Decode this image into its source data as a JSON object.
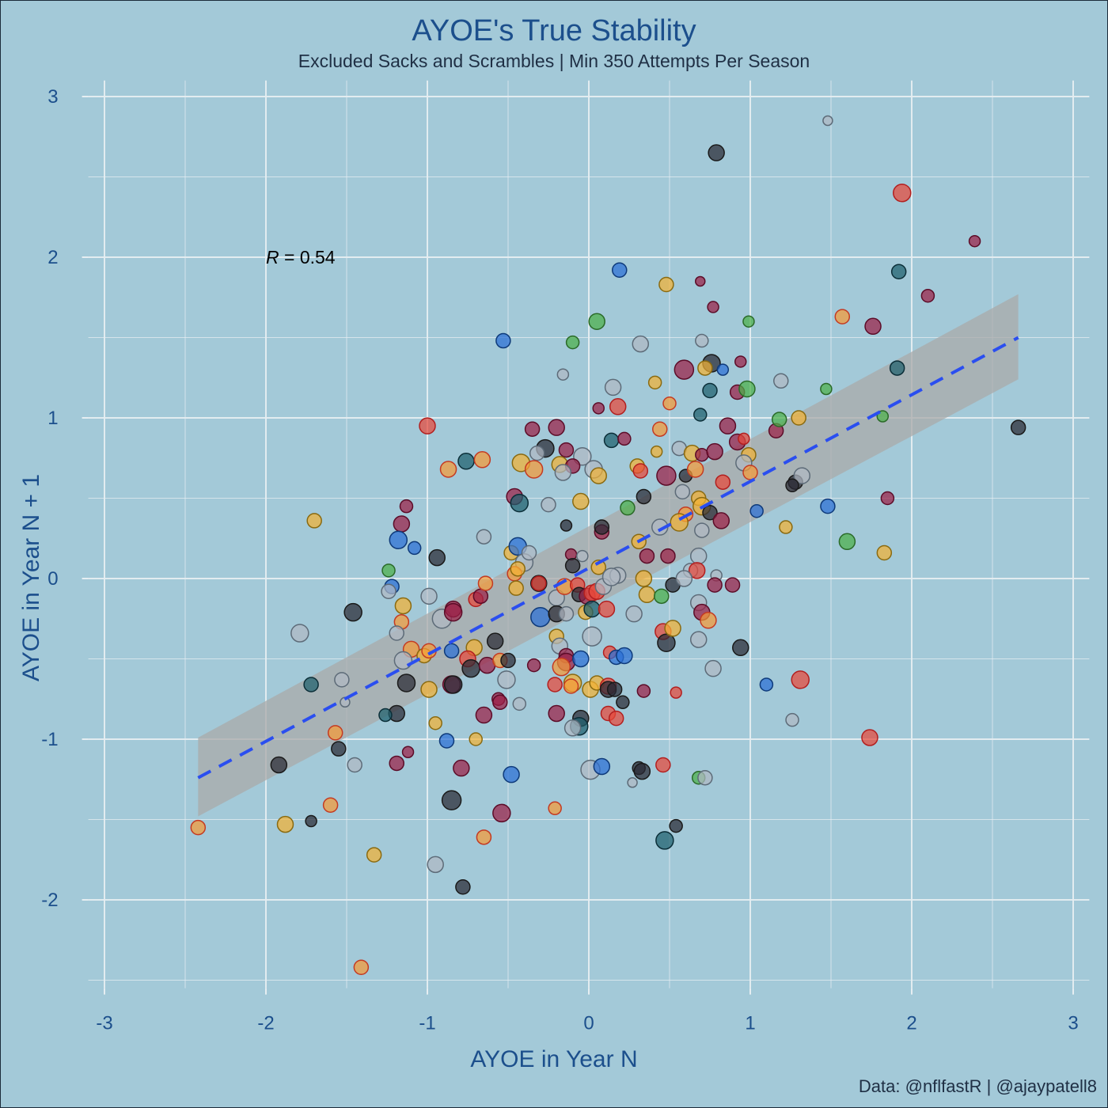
{
  "chart_data": {
    "type": "scatter",
    "title": "AYOE's True Stability",
    "subtitle": "Excluded Sacks and Scrambles | Min 350 Attempts Per Season",
    "xlabel": "AYOE in Year N",
    "ylabel": "AYOE in Year N + 1",
    "caption": "Data: @nflfastR | @ajaypatell8",
    "annotation": {
      "label_italic": "R",
      "label_rest": " = 0.54",
      "x": -2.0,
      "y": 2.0
    },
    "xlim": [
      -3.1,
      3.1
    ],
    "ylim": [
      -2.55,
      3.1
    ],
    "xticks": [
      -3,
      -2,
      -1,
      0,
      1,
      2,
      3
    ],
    "yticks": [
      -2,
      -1,
      0,
      1,
      2,
      3
    ],
    "grid": true,
    "regression": {
      "x": [
        -2.42,
        2.66
      ],
      "y": [
        -1.24,
        1.5
      ],
      "band_lower": [
        -1.48,
        1.24
      ],
      "band_upper": [
        -0.99,
        1.77
      ],
      "line_color": "#2a4ef0",
      "band_color": "#a9a9a9"
    },
    "colors": {
      "background": "#a3c9d8",
      "grid": "#e6eef2",
      "text_blue": "#1c4f8c",
      "palette": [
        "#2a2a35",
        "#b0b8c4",
        "#f2b134",
        "#9b2047",
        "#2b6fd6",
        "#e8483a",
        "#4cb04a",
        "#1f5f6e",
        "#f59a38",
        "#0d2347"
      ],
      "edges": [
        "#1a1a1a",
        "#5d6b78",
        "#8a6a10",
        "#5c0c28",
        "#0e3a7a",
        "#b21f1f",
        "#2a6a28",
        "#0b2e38",
        "#c43a22",
        "#2d62b8"
      ]
    },
    "points": [
      [
        1.48,
        2.85,
        6,
        1
      ],
      [
        0.79,
        2.65,
        10,
        0
      ],
      [
        1.94,
        2.4,
        11,
        5
      ],
      [
        2.39,
        2.1,
        7,
        3
      ],
      [
        0.19,
        1.92,
        9,
        4
      ],
      [
        1.92,
        1.91,
        9,
        7
      ],
      [
        0.48,
        1.83,
        9,
        2
      ],
      [
        0.69,
        1.85,
        6,
        3
      ],
      [
        2.1,
        1.76,
        8,
        3
      ],
      [
        0.77,
        1.69,
        7,
        3
      ],
      [
        1.57,
        1.63,
        9,
        8
      ],
      [
        1.76,
        1.57,
        10,
        3
      ],
      [
        0.05,
        1.6,
        10,
        6
      ],
      [
        0.99,
        1.6,
        7,
        6
      ],
      [
        -0.53,
        1.48,
        9,
        4
      ],
      [
        -0.1,
        1.47,
        8,
        6
      ],
      [
        0.32,
        1.46,
        10,
        1
      ],
      [
        0.7,
        1.48,
        8,
        1
      ],
      [
        0.59,
        1.3,
        12,
        3
      ],
      [
        0.76,
        1.34,
        11,
        0
      ],
      [
        0.83,
        1.3,
        7,
        4
      ],
      [
        0.72,
        1.31,
        9,
        2
      ],
      [
        0.94,
        1.35,
        7,
        3
      ],
      [
        1.91,
        1.31,
        9,
        7
      ],
      [
        -0.16,
        1.27,
        7,
        1
      ],
      [
        0.15,
        1.19,
        10,
        1
      ],
      [
        0.41,
        1.22,
        8,
        2
      ],
      [
        0.75,
        1.17,
        9,
        7
      ],
      [
        0.92,
        1.16,
        9,
        3
      ],
      [
        0.98,
        1.18,
        10,
        6
      ],
      [
        1.19,
        1.23,
        9,
        1
      ],
      [
        1.47,
        1.18,
        7,
        6
      ],
      [
        0.18,
        1.07,
        10,
        5
      ],
      [
        0.06,
        1.06,
        7,
        3
      ],
      [
        0.5,
        1.09,
        8,
        8
      ],
      [
        0.69,
        1.02,
        8,
        7
      ],
      [
        0.86,
        0.95,
        10,
        3
      ],
      [
        1.16,
        0.92,
        9,
        3
      ],
      [
        1.18,
        0.99,
        9,
        6
      ],
      [
        1.3,
        1.0,
        9,
        2
      ],
      [
        1.82,
        1.01,
        7,
        6
      ],
      [
        2.66,
        0.94,
        9,
        0
      ],
      [
        -1.0,
        0.95,
        10,
        5
      ],
      [
        -0.35,
        0.93,
        9,
        3
      ],
      [
        -0.2,
        0.94,
        10,
        3
      ],
      [
        0.14,
        0.86,
        9,
        7
      ],
      [
        0.22,
        0.87,
        8,
        3
      ],
      [
        0.44,
        0.93,
        9,
        8
      ],
      [
        0.92,
        0.85,
        10,
        3
      ],
      [
        0.96,
        0.87,
        7,
        5
      ],
      [
        -0.27,
        0.81,
        11,
        0
      ],
      [
        -0.32,
        0.78,
        9,
        1
      ],
      [
        -0.14,
        0.8,
        9,
        3
      ],
      [
        0.56,
        0.81,
        9,
        1
      ],
      [
        0.64,
        0.78,
        10,
        2
      ],
      [
        0.7,
        0.77,
        8,
        3
      ],
      [
        0.78,
        0.79,
        10,
        3
      ],
      [
        0.99,
        0.77,
        9,
        2
      ],
      [
        0.42,
        0.79,
        7,
        2
      ],
      [
        -0.04,
        0.76,
        11,
        1
      ],
      [
        -0.87,
        0.68,
        10,
        8
      ],
      [
        -0.76,
        0.73,
        10,
        7
      ],
      [
        -0.66,
        0.74,
        10,
        8
      ],
      [
        -0.42,
        0.72,
        11,
        2
      ],
      [
        -0.34,
        0.68,
        11,
        8
      ],
      [
        -0.18,
        0.71,
        10,
        2
      ],
      [
        -0.1,
        0.7,
        9,
        3
      ],
      [
        -0.16,
        0.66,
        10,
        1
      ],
      [
        0.03,
        0.68,
        11,
        1
      ],
      [
        0.06,
        0.64,
        10,
        2
      ],
      [
        0.3,
        0.7,
        9,
        2
      ],
      [
        0.32,
        0.67,
        9,
        5
      ],
      [
        0.48,
        0.64,
        12,
        3
      ],
      [
        0.6,
        0.64,
        8,
        0
      ],
      [
        0.66,
        0.68,
        10,
        8
      ],
      [
        0.83,
        0.6,
        9,
        5
      ],
      [
        0.96,
        0.72,
        10,
        1
      ],
      [
        1.0,
        0.66,
        9,
        8
      ],
      [
        1.28,
        0.6,
        9,
        0
      ],
      [
        1.32,
        0.64,
        10,
        1
      ],
      [
        1.26,
        0.58,
        8,
        0
      ],
      [
        1.85,
        0.5,
        8,
        3
      ],
      [
        -1.7,
        0.36,
        9,
        2
      ],
      [
        -1.13,
        0.45,
        8,
        3
      ],
      [
        -0.46,
        0.51,
        10,
        3
      ],
      [
        -0.43,
        0.47,
        11,
        7
      ],
      [
        -0.25,
        0.46,
        9,
        1
      ],
      [
        -0.05,
        0.48,
        10,
        2
      ],
      [
        0.24,
        0.44,
        9,
        6
      ],
      [
        0.34,
        0.51,
        9,
        0
      ],
      [
        0.44,
        0.32,
        10,
        1
      ],
      [
        0.58,
        0.54,
        9,
        1
      ],
      [
        0.6,
        0.4,
        9,
        8
      ],
      [
        0.68,
        0.5,
        9,
        2
      ],
      [
        0.7,
        0.45,
        11,
        2
      ],
      [
        0.75,
        0.41,
        9,
        0
      ],
      [
        0.82,
        0.36,
        10,
        3
      ],
      [
        1.04,
        0.42,
        8,
        4
      ],
      [
        1.48,
        0.45,
        9,
        4
      ],
      [
        1.6,
        0.23,
        10,
        6
      ],
      [
        1.83,
        0.16,
        9,
        2
      ],
      [
        1.22,
        0.32,
        8,
        2
      ],
      [
        -1.16,
        0.34,
        10,
        3
      ],
      [
        -1.18,
        0.24,
        11,
        4
      ],
      [
        -1.08,
        0.19,
        8,
        4
      ],
      [
        -0.94,
        0.13,
        10,
        0
      ],
      [
        -0.65,
        0.26,
        9,
        1
      ],
      [
        -0.48,
        0.16,
        9,
        2
      ],
      [
        -0.44,
        0.2,
        11,
        4
      ],
      [
        -0.4,
        0.1,
        11,
        1
      ],
      [
        -0.37,
        0.16,
        9,
        1
      ],
      [
        -0.14,
        0.33,
        7,
        0
      ],
      [
        -0.11,
        0.15,
        7,
        3
      ],
      [
        -0.1,
        0.08,
        9,
        0
      ],
      [
        -0.04,
        0.14,
        7,
        1
      ],
      [
        0.06,
        0.07,
        9,
        2
      ],
      [
        0.08,
        0.29,
        9,
        3
      ],
      [
        0.08,
        0.32,
        9,
        0
      ],
      [
        0.18,
        0.02,
        10,
        1
      ],
      [
        0.31,
        0.23,
        9,
        2
      ],
      [
        0.36,
        0.14,
        9,
        3
      ],
      [
        0.49,
        0.14,
        9,
        3
      ],
      [
        0.56,
        0.35,
        11,
        2
      ],
      [
        0.7,
        0.3,
        9,
        1
      ],
      [
        0.68,
        0.14,
        10,
        1
      ],
      [
        0.63,
        0.05,
        9,
        1
      ],
      [
        0.67,
        0.05,
        10,
        5
      ],
      [
        0.79,
        0.02,
        7,
        1
      ],
      [
        0.78,
        -0.04,
        9,
        3
      ],
      [
        0.52,
        -0.04,
        9,
        0
      ],
      [
        -1.24,
        0.05,
        8,
        6
      ],
      [
        -1.22,
        -0.05,
        9,
        4
      ],
      [
        -1.24,
        -0.08,
        9,
        1
      ],
      [
        -1.15,
        -0.17,
        10,
        2
      ],
      [
        -1.16,
        -0.27,
        9,
        8
      ],
      [
        -1.19,
        -0.34,
        9,
        1
      ],
      [
        -1.46,
        -0.21,
        11,
        0
      ],
      [
        -1.79,
        -0.34,
        11,
        1
      ],
      [
        -0.99,
        -0.11,
        10,
        1
      ],
      [
        -0.91,
        -0.25,
        12,
        1
      ],
      [
        -0.84,
        -0.19,
        10,
        3
      ],
      [
        -0.84,
        -0.21,
        11,
        3
      ],
      [
        -0.7,
        -0.13,
        9,
        5
      ],
      [
        -0.67,
        -0.11,
        9,
        3
      ],
      [
        -0.64,
        -0.03,
        9,
        8
      ],
      [
        -0.46,
        0.03,
        9,
        8
      ],
      [
        -0.44,
        0.06,
        9,
        2
      ],
      [
        -0.45,
        -0.06,
        9,
        2
      ],
      [
        -0.31,
        -0.03,
        10,
        0
      ],
      [
        -0.31,
        -0.03,
        9,
        5
      ],
      [
        -0.3,
        -0.24,
        12,
        4
      ],
      [
        -0.2,
        -0.12,
        10,
        1
      ],
      [
        -0.2,
        -0.22,
        10,
        0
      ],
      [
        -0.15,
        -0.05,
        10,
        8
      ],
      [
        -0.14,
        -0.22,
        9,
        1
      ],
      [
        -0.07,
        -0.04,
        9,
        5
      ],
      [
        -0.06,
        -0.1,
        9,
        0
      ],
      [
        -0.02,
        -0.21,
        9,
        2
      ],
      [
        -0.01,
        -0.11,
        10,
        3
      ],
      [
        0.02,
        -0.09,
        10,
        5
      ],
      [
        0.02,
        -0.19,
        10,
        7
      ],
      [
        0.05,
        -0.08,
        10,
        5
      ],
      [
        0.09,
        -0.05,
        10,
        1
      ],
      [
        0.11,
        -0.19,
        10,
        5
      ],
      [
        0.14,
        0.01,
        11,
        1
      ],
      [
        0.28,
        -0.22,
        10,
        1
      ],
      [
        0.34,
        0.0,
        10,
        2
      ],
      [
        0.36,
        -0.1,
        10,
        2
      ],
      [
        0.45,
        -0.11,
        9,
        6
      ],
      [
        0.59,
        0.0,
        10,
        1
      ],
      [
        0.68,
        -0.15,
        10,
        1
      ],
      [
        0.7,
        -0.21,
        10,
        3
      ],
      [
        0.74,
        -0.26,
        10,
        8
      ],
      [
        0.89,
        -0.04,
        9,
        3
      ],
      [
        -1.1,
        -0.44,
        10,
        8
      ],
      [
        -1.15,
        -0.51,
        11,
        1
      ],
      [
        -1.02,
        -0.48,
        9,
        2
      ],
      [
        -0.99,
        -0.45,
        9,
        8
      ],
      [
        -0.85,
        -0.45,
        9,
        4
      ],
      [
        -0.71,
        -0.43,
        10,
        2
      ],
      [
        -0.75,
        -0.5,
        10,
        5
      ],
      [
        -0.73,
        -0.56,
        11,
        0
      ],
      [
        -0.63,
        -0.54,
        10,
        3
      ],
      [
        -0.58,
        -0.39,
        10,
        0
      ],
      [
        -0.55,
        -0.51,
        9,
        8
      ],
      [
        -0.5,
        -0.51,
        9,
        0
      ],
      [
        -0.34,
        -0.54,
        8,
        3
      ],
      [
        -0.2,
        -0.36,
        9,
        2
      ],
      [
        -0.18,
        -0.42,
        10,
        1
      ],
      [
        -0.14,
        -0.48,
        9,
        3
      ],
      [
        -0.14,
        -0.52,
        11,
        3
      ],
      [
        -0.05,
        -0.5,
        10,
        4
      ],
      [
        0.02,
        -0.36,
        12,
        1
      ],
      [
        0.13,
        -0.46,
        8,
        5
      ],
      [
        0.17,
        -0.49,
        9,
        4
      ],
      [
        0.22,
        -0.48,
        10,
        4
      ],
      [
        0.46,
        -0.33,
        10,
        5
      ],
      [
        0.48,
        -0.4,
        11,
        0
      ],
      [
        0.52,
        -0.31,
        10,
        2
      ],
      [
        0.68,
        -0.38,
        10,
        1
      ],
      [
        0.77,
        -0.56,
        10,
        1
      ],
      [
        0.94,
        -0.43,
        10,
        0
      ],
      [
        -1.72,
        -0.66,
        9,
        7
      ],
      [
        -1.53,
        -0.63,
        9,
        1
      ],
      [
        -1.51,
        -0.77,
        6,
        1
      ],
      [
        -1.13,
        -0.65,
        11,
        0
      ],
      [
        -1.19,
        -0.84,
        10,
        0
      ],
      [
        -1.26,
        -0.85,
        8,
        7
      ],
      [
        -0.99,
        -0.69,
        10,
        2
      ],
      [
        -0.85,
        -0.66,
        11,
        3
      ],
      [
        -0.84,
        -0.66,
        11,
        0
      ],
      [
        -0.65,
        -0.85,
        10,
        3
      ],
      [
        -0.56,
        -0.75,
        8,
        3
      ],
      [
        -0.55,
        -0.77,
        9,
        3
      ],
      [
        -0.51,
        -0.63,
        11,
        1
      ],
      [
        -0.43,
        -0.78,
        8,
        1
      ],
      [
        -0.21,
        -0.66,
        9,
        5
      ],
      [
        -0.2,
        -0.84,
        10,
        3
      ],
      [
        -0.17,
        -0.55,
        11,
        8
      ],
      [
        -0.1,
        -0.65,
        11,
        2
      ],
      [
        -0.11,
        -0.67,
        9,
        8
      ],
      [
        -0.05,
        -0.87,
        10,
        0
      ],
      [
        -0.06,
        -0.92,
        11,
        7
      ],
      [
        -0.1,
        -0.93,
        10,
        1
      ],
      [
        0.01,
        -0.69,
        10,
        2
      ],
      [
        0.05,
        -0.65,
        9,
        2
      ],
      [
        0.12,
        -0.67,
        10,
        5
      ],
      [
        0.12,
        -0.69,
        10,
        0
      ],
      [
        0.16,
        -0.69,
        9,
        0
      ],
      [
        0.21,
        -0.77,
        8,
        0
      ],
      [
        0.12,
        -0.84,
        9,
        5
      ],
      [
        0.17,
        -0.87,
        9,
        5
      ],
      [
        0.34,
        -0.7,
        8,
        3
      ],
      [
        0.54,
        -0.71,
        7,
        5
      ],
      [
        1.1,
        -0.66,
        8,
        4
      ],
      [
        1.31,
        -0.63,
        11,
        5
      ],
      [
        1.26,
        -0.88,
        8,
        1
      ],
      [
        1.74,
        -0.99,
        10,
        5
      ],
      [
        -1.57,
        -0.96,
        9,
        8
      ],
      [
        -1.55,
        -1.06,
        9,
        0
      ],
      [
        -1.45,
        -1.16,
        9,
        1
      ],
      [
        -1.92,
        -1.16,
        10,
        0
      ],
      [
        -1.12,
        -1.08,
        7,
        3
      ],
      [
        -1.19,
        -1.15,
        9,
        3
      ],
      [
        -0.95,
        -0.9,
        8,
        2
      ],
      [
        -0.88,
        -1.01,
        9,
        4
      ],
      [
        -0.79,
        -1.18,
        10,
        3
      ],
      [
        -0.7,
        -1.0,
        8,
        2
      ],
      [
        -0.85,
        -1.38,
        12,
        0
      ],
      [
        -0.95,
        -1.78,
        10,
        1
      ],
      [
        -0.78,
        -1.92,
        9,
        0
      ],
      [
        -0.65,
        -1.61,
        9,
        8
      ],
      [
        -0.54,
        -1.46,
        11,
        3
      ],
      [
        -0.48,
        -1.22,
        10,
        4
      ],
      [
        -0.21,
        -1.43,
        8,
        8
      ],
      [
        0.01,
        -1.19,
        12,
        1
      ],
      [
        0.08,
        -1.17,
        10,
        4
      ],
      [
        0.27,
        -1.27,
        6,
        1
      ],
      [
        0.31,
        -1.18,
        8,
        0
      ],
      [
        0.33,
        -1.2,
        10,
        0
      ],
      [
        0.46,
        -1.16,
        9,
        5
      ],
      [
        0.47,
        -1.63,
        11,
        7
      ],
      [
        0.54,
        -1.54,
        8,
        0
      ],
      [
        0.68,
        -1.24,
        8,
        6
      ],
      [
        0.72,
        -1.24,
        9,
        1
      ],
      [
        -1.72,
        -1.51,
        7,
        0
      ],
      [
        -1.88,
        -1.53,
        10,
        2
      ],
      [
        -1.6,
        -1.41,
        9,
        8
      ],
      [
        -2.42,
        -1.55,
        9,
        8
      ],
      [
        -1.33,
        -1.72,
        9,
        2
      ],
      [
        -1.41,
        -2.42,
        9,
        8
      ]
    ]
  }
}
